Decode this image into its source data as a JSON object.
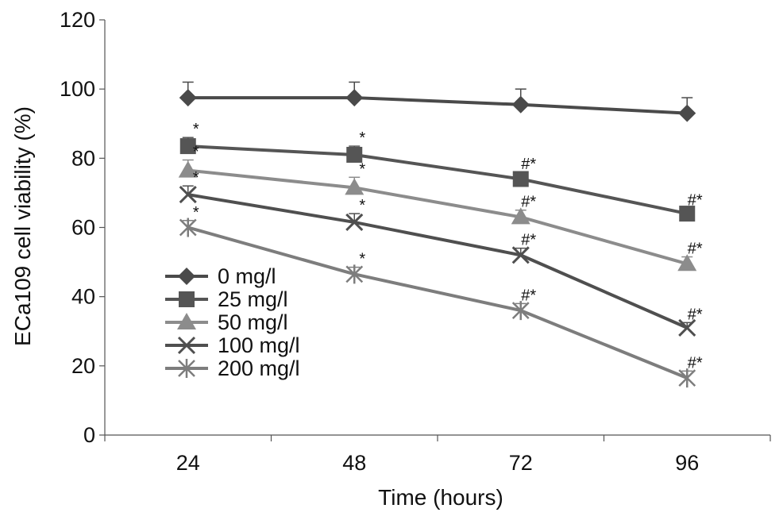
{
  "chart_data": {
    "type": "line",
    "xlabel": "Time (hours)",
    "ylabel": "ECa109 cell viability (%)",
    "categories": [
      "24",
      "48",
      "72",
      "96"
    ],
    "ylim": [
      0,
      120
    ],
    "yticks": [
      "0",
      "20",
      "40",
      "60",
      "80",
      "100",
      "120"
    ],
    "grid": false,
    "legend_position": "bottom-left",
    "series": [
      {
        "name": "0 mg/l",
        "marker": "diamond",
        "color": "#4a4a4a",
        "values": [
          97.5,
          97.5,
          95.5,
          93
        ],
        "errors": [
          4.5,
          4.5,
          4.5,
          4.5
        ],
        "annotations": [
          "",
          "",
          "",
          ""
        ]
      },
      {
        "name": "25 mg/l",
        "marker": "square",
        "color": "#555555",
        "values": [
          83.5,
          81,
          74,
          64
        ],
        "errors": [
          2.5,
          2.5,
          2,
          1.5
        ],
        "annotations": [
          "*",
          "*",
          "#*",
          "#*"
        ]
      },
      {
        "name": "50 mg/l",
        "marker": "triangle",
        "color": "#8c8c8c",
        "values": [
          76.5,
          71.5,
          63,
          49.5
        ],
        "errors": [
          3,
          3,
          2,
          2
        ],
        "annotations": [
          "*",
          "*",
          "#*",
          "#*"
        ]
      },
      {
        "name": "100 mg/l",
        "marker": "x",
        "color": "#4f4f4f",
        "values": [
          69.5,
          61.5,
          52,
          31
        ],
        "errors": [
          2.5,
          2.5,
          2,
          1.5
        ],
        "annotations": [
          "*",
          "*",
          "#*",
          "#*"
        ]
      },
      {
        "name": "200 mg/l",
        "marker": "star",
        "color": "#7d7d7d",
        "values": [
          60,
          46.5,
          36,
          16.5
        ],
        "errors": [
          2,
          2,
          2,
          2
        ],
        "annotations": [
          "*",
          "*",
          "#*",
          "#*"
        ]
      }
    ]
  }
}
